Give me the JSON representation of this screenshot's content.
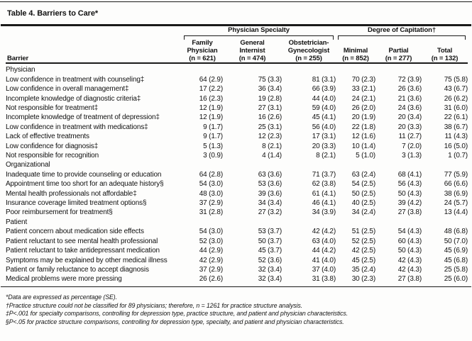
{
  "table": {
    "title": "Table 4. Barriers to Care*",
    "row_header": "Barrier",
    "groups": [
      {
        "label": "Physician Specialty",
        "span": 3
      },
      {
        "label": "Degree of Capitation†",
        "span": 3
      }
    ],
    "columns": [
      {
        "lines": [
          "Family",
          "Physician",
          "(n = 621)"
        ]
      },
      {
        "lines": [
          "General",
          "Internist",
          "(n = 474)"
        ]
      },
      {
        "lines": [
          "Obstetrician-",
          "Gynecologist",
          "(n = 255)"
        ]
      },
      {
        "lines": [
          "Minimal",
          "(n = 852)"
        ]
      },
      {
        "lines": [
          "Partial",
          "(n = 277)"
        ]
      },
      {
        "lines": [
          "Total",
          "(n = 132)"
        ]
      }
    ],
    "sections": [
      {
        "label": "Physician",
        "rows": [
          {
            "barrier": "Low confidence in treatment with counseling‡",
            "values": [
              "64 (2.9)",
              "75 (3.3)",
              "81 (3.1)",
              "70 (2.3)",
              "72 (3.9)",
              "75 (5.8)"
            ]
          },
          {
            "barrier": "Low confidence in overall management‡",
            "values": [
              "17 (2.2)",
              "36 (3.4)",
              "66 (3.9)",
              "33 (2.1)",
              "26 (3.6)",
              "43 (6.7)"
            ]
          },
          {
            "barrier": "Incomplete knowledge of diagnostic criteria‡",
            "values": [
              "16 (2.3)",
              "19 (2.8)",
              "44 (4.0)",
              "24 (2.1)",
              "21 (3.6)",
              "26 (6.2)"
            ]
          },
          {
            "barrier": "Not responsible for treatment‡",
            "values": [
              "12 (1.9)",
              "27 (3.1)",
              "59 (4.0)",
              "26 (2.0)",
              "24 (3.6)",
              "31 (6.0)"
            ]
          },
          {
            "barrier": "Incomplete knowledge of treatment of depression‡",
            "values": [
              "12 (1.9)",
              "16 (2.6)",
              "45 (4.1)",
              "20 (1.9)",
              "20 (3.4)",
              "22 (6.1)"
            ]
          },
          {
            "barrier": "Low confidence in treatment with medications‡",
            "values": [
              "9 (1.7)",
              "25 (3.1)",
              "56 (4.0)",
              "22 (1.8)",
              "20 (3.3)",
              "38 (6.7)"
            ]
          },
          {
            "barrier": "Lack of effective treatments",
            "values": [
              "9 (1.7)",
              "12 (2.3)",
              "17 (3.1)",
              "12 (1.6)",
              "11 (2.7)",
              "11 (4.3)"
            ]
          },
          {
            "barrier": "Low confidence for diagnosis‡",
            "values": [
              "5 (1.3)",
              "8 (2.1)",
              "20 (3.3)",
              "10 (1.4)",
              "7 (2.0)",
              "16 (5.0)"
            ]
          },
          {
            "barrier": "Not responsible for recognition",
            "values": [
              "3 (0.9)",
              "4 (1.4)",
              "8 (2.1)",
              "5 (1.0)",
              "3 (1.3)",
              "1 (0.7)"
            ]
          }
        ]
      },
      {
        "label": "Organizational",
        "rows": [
          {
            "barrier": "Inadequate time to provide counseling or education",
            "values": [
              "64 (2.8)",
              "63 (3.6)",
              "71 (3.7)",
              "63 (2.4)",
              "68 (4.1)",
              "77 (5.9)"
            ]
          },
          {
            "barrier": "Appointment time too short for an adequate history§",
            "values": [
              "54 (3.0)",
              "53 (3.6)",
              "62 (3.8)",
              "54 (2.5)",
              "56 (4.3)",
              "66 (6.6)"
            ]
          },
          {
            "barrier": "Mental health professionals not affordable‡",
            "values": [
              "48 (3.0)",
              "39 (3.6)",
              "61 (4.1)",
              "50 (2.5)",
              "50 (4.3)",
              "38 (6.9)"
            ]
          },
          {
            "barrier": "Insurance coverage limited treatment options§",
            "values": [
              "37 (2.9)",
              "34 (3.4)",
              "46 (4.1)",
              "40 (2.5)",
              "39 (4.2)",
              "24 (5.7)"
            ]
          },
          {
            "barrier": "Poor reimbursement for treatment§",
            "values": [
              "31 (2.8)",
              "27 (3.2)",
              "34 (3.9)",
              "34 (2.4)",
              "27 (3.8)",
              "13 (4.4)"
            ]
          }
        ]
      },
      {
        "label": "Patient",
        "rows": [
          {
            "barrier": "Patient concern about medication side effects",
            "values": [
              "54 (3.0)",
              "53 (3.7)",
              "42 (4.2)",
              "51 (2.5)",
              "54 (4.3)",
              "48 (6.8)"
            ]
          },
          {
            "barrier": "Patient reluctant to see mental health professional",
            "values": [
              "52 (3.0)",
              "50 (3.7)",
              "63 (4.0)",
              "52 (2.5)",
              "60 (4.3)",
              "50 (7.0)"
            ]
          },
          {
            "barrier": "Patient reluctant to take antidepressant medication",
            "values": [
              "44 (2.9)",
              "45 (3.7)",
              "44 (4.2)",
              "42 (2.5)",
              "50 (4.3)",
              "45 (6.9)"
            ]
          },
          {
            "barrier": "Symptoms may be explained by other medical illness",
            "values": [
              "42 (2.9)",
              "52 (3.6)",
              "41 (4.0)",
              "45 (2.5)",
              "42 (4.3)",
              "45 (6.8)"
            ]
          },
          {
            "barrier": "Patient or family reluctance to accept diagnosis",
            "values": [
              "37 (2.9)",
              "32 (3.4)",
              "37 (4.0)",
              "35 (2.4)",
              "42 (4.3)",
              "25 (5.8)"
            ]
          },
          {
            "barrier": "Medical problems were more pressing",
            "values": [
              "26 (2.6)",
              "32 (3.4)",
              "31 (3.8)",
              "30 (2.3)",
              "27 (3.8)",
              "25 (6.0)"
            ]
          }
        ]
      }
    ],
    "footnotes": [
      "*Data are expressed as percentage (SE).",
      "†Practice structure could not be classified for 89 physicians; therefore, n = 1261 for practice structure analysis.",
      "‡P<.001 for specialty comparisons, controlling for depression type, practice structure, and patient and physician characteristics.",
      "§P<.05 for practice structure comparisons, controlling for depression type, specialty, and patient and physician characteristics."
    ]
  }
}
